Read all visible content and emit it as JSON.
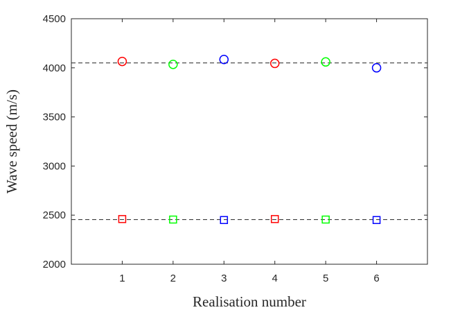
{
  "chart_data": {
    "type": "scatter",
    "title": "",
    "xlabel": "Realisation number",
    "ylabel": "Wave speed (m/s)",
    "xlim": [
      0,
      7
    ],
    "ylim": [
      2000,
      4500
    ],
    "x_ticks": [
      "1",
      "2",
      "3",
      "4",
      "5",
      "6"
    ],
    "y_ticks": [
      "2000",
      "2500",
      "3000",
      "3500",
      "4000",
      "4500"
    ],
    "grid": false,
    "reference_lines": [
      4050,
      2455
    ],
    "series": [
      {
        "marker": "circle",
        "x": [
          1,
          2,
          3,
          4,
          5,
          6
        ],
        "y": [
          4065,
          4035,
          4085,
          4045,
          4060,
          4000
        ],
        "colors": [
          "#ff0000",
          "#00ff00",
          "#0000ff",
          "#ff0000",
          "#00ff00",
          "#0000ff"
        ]
      },
      {
        "marker": "square",
        "x": [
          1,
          2,
          3,
          4,
          5,
          6
        ],
        "y": [
          2460,
          2455,
          2450,
          2460,
          2455,
          2450
        ],
        "colors": [
          "#ff0000",
          "#00ff00",
          "#0000ff",
          "#ff0000",
          "#00ff00",
          "#0000ff"
        ]
      }
    ]
  }
}
